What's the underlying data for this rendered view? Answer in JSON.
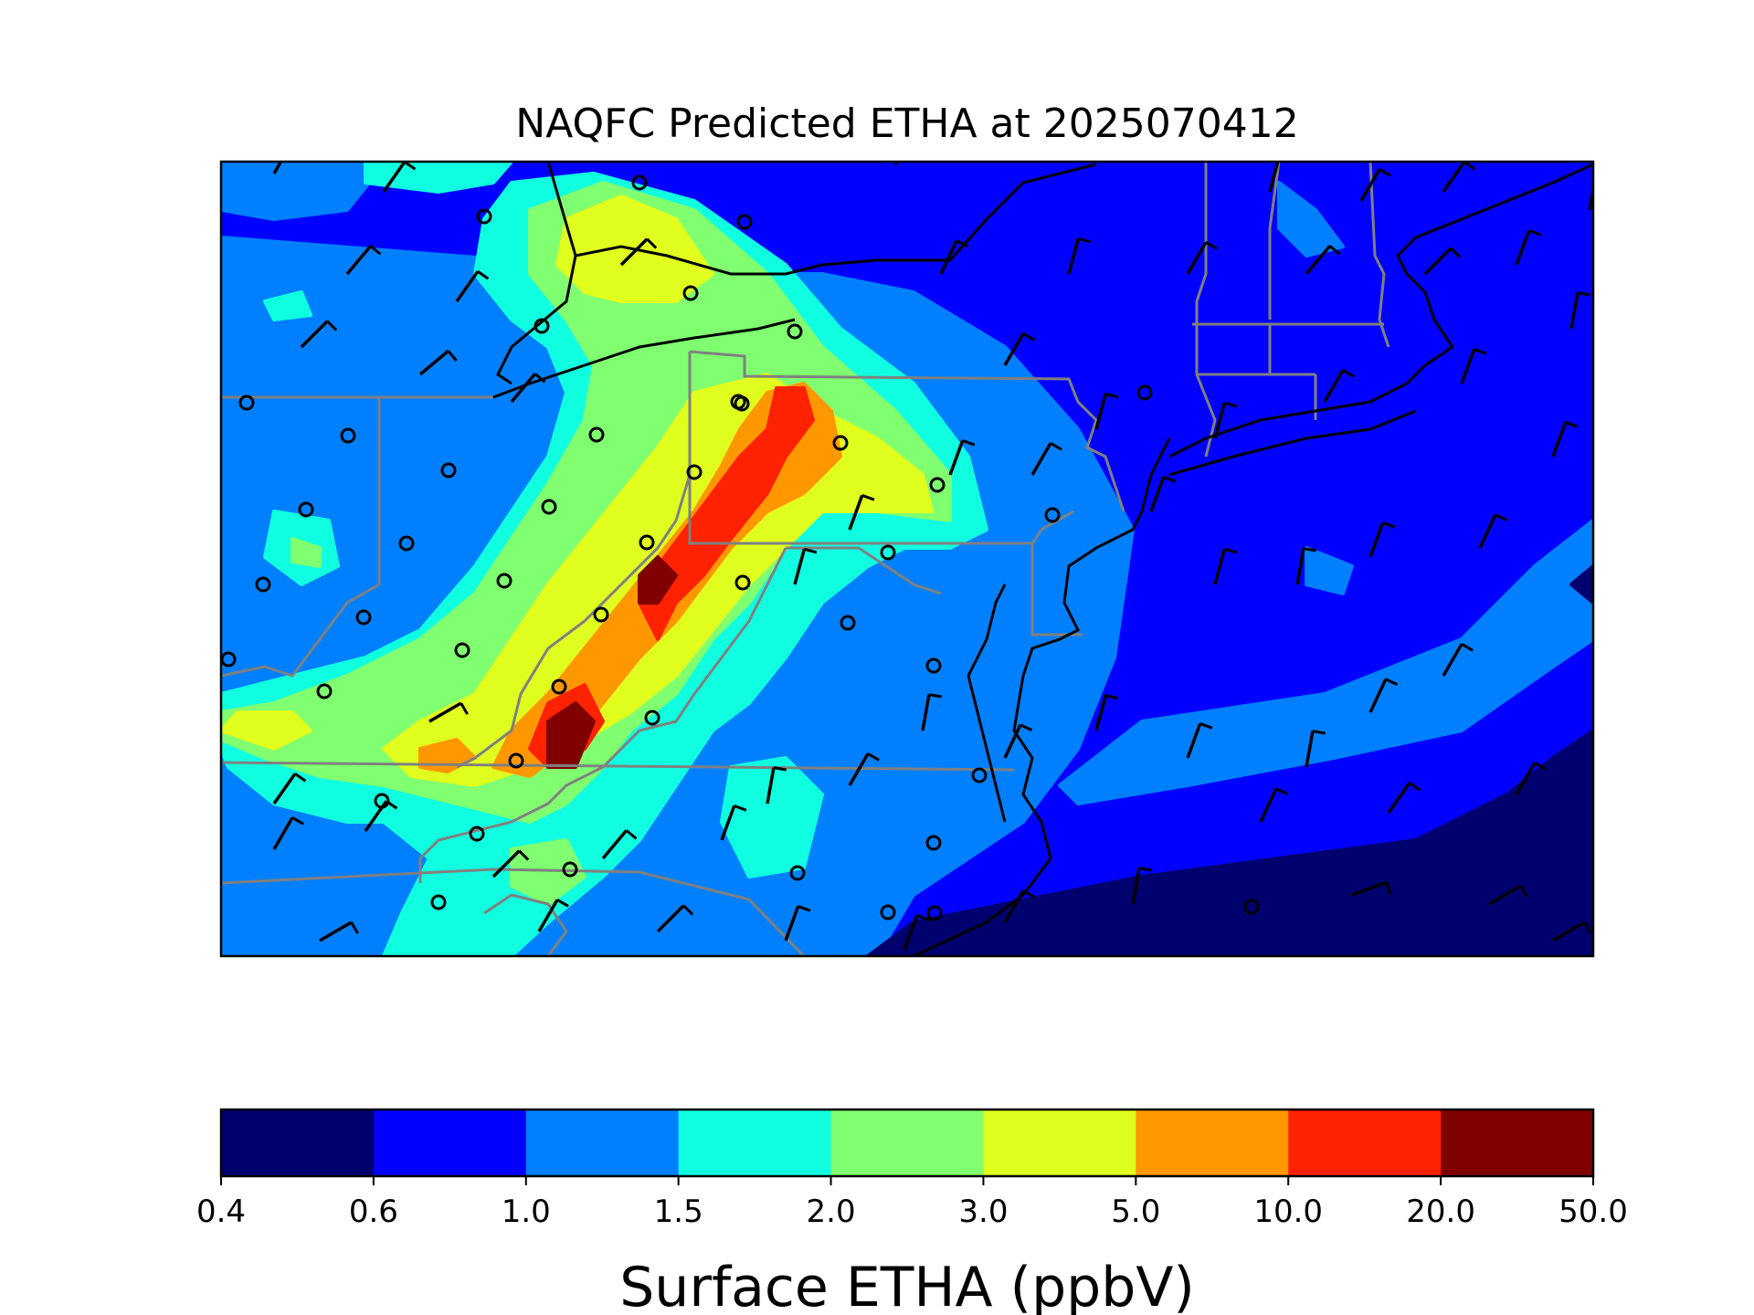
{
  "title": "NAQFC Predicted ETHA at 2025070412",
  "colorbar": {
    "label": "Surface ETHA (ppbV)",
    "levels": [
      "0.4",
      "0.6",
      "1.0",
      "1.5",
      "2.0",
      "3.0",
      "5.0",
      "10.0",
      "20.0",
      "50.0"
    ],
    "colors": [
      "#00006e",
      "#0000ff",
      "#0080ff",
      "#10ffe0",
      "#80ff70",
      "#e0ff1e",
      "#ff9800",
      "#ff2200",
      "#800000"
    ]
  },
  "map": {
    "background_color": "#0000ff",
    "border_color": "#808080",
    "coast_color": "#000000",
    "site_marker": "circle",
    "wind_marker": "barb"
  }
}
